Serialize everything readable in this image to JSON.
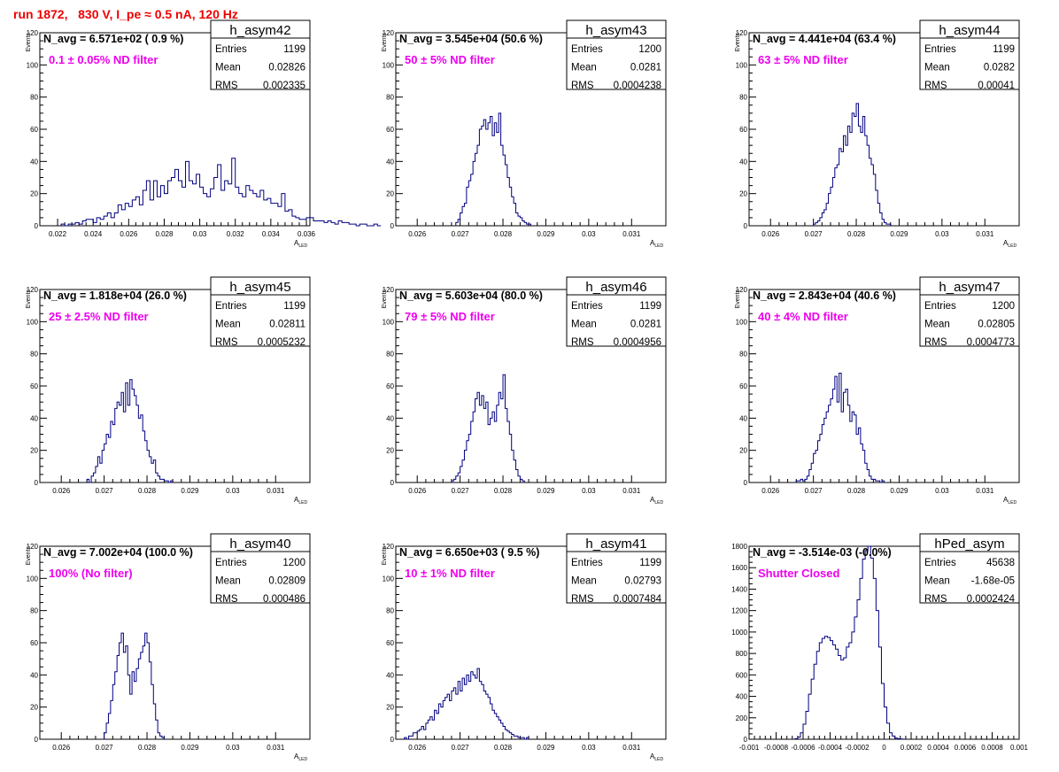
{
  "page": {
    "title": "run 1872,   830 V, I_pe ≈ 0.5 nA, 120 Hz"
  },
  "colors": {
    "title": "#ee0000",
    "annotation": "#ee00ee",
    "histogram": "#000080",
    "axis": "#000000"
  },
  "chart_data": [
    {
      "type": "histogram",
      "name": "h_asym42",
      "stats": {
        "entries_label": "Entries",
        "entries": "1199",
        "mean_label": "Mean",
        "mean": "0.02826",
        "rms_label": "RMS",
        "rms": "0.002335"
      },
      "navg": "N_avg = 6.571e+02 ( 0.9 %)",
      "annotation": "0.1 ± 0.05% ND filter",
      "xlabel": "A",
      "xlabel_sub": "LED",
      "ylabel": "Events",
      "xlim": [
        0.021,
        0.0362
      ],
      "ylim": [
        0,
        120
      ],
      "xticks": [
        "0.022",
        "0.024",
        "0.026",
        "0.028",
        "0.03",
        "0.032",
        "0.034",
        "0.036"
      ],
      "xtick_values": [
        0.022,
        0.024,
        0.026,
        0.028,
        0.03,
        0.032,
        0.034,
        0.036
      ],
      "yticks": [
        "0",
        "20",
        "40",
        "60",
        "80",
        "100",
        "120"
      ],
      "ytick_values": [
        0,
        20,
        40,
        60,
        80,
        100,
        120
      ],
      "bin_start": 0.0222,
      "bin_width": 0.0002,
      "values": [
        1,
        0,
        1,
        1,
        2,
        1,
        3,
        4,
        4,
        2,
        5,
        4,
        6,
        8,
        5,
        8,
        13,
        10,
        14,
        12,
        16,
        18,
        13,
        22,
        28,
        16,
        28,
        18,
        25,
        20,
        28,
        30,
        35,
        28,
        24,
        40,
        28,
        26,
        32,
        24,
        20,
        18,
        23,
        30,
        38,
        22,
        28,
        26,
        42,
        24,
        20,
        18,
        25,
        22,
        20,
        18,
        22,
        16,
        17,
        14,
        14,
        12,
        20,
        9,
        10,
        6,
        5,
        4,
        4,
        5,
        5,
        3,
        3,
        3,
        2,
        3,
        2,
        1,
        3,
        2,
        2,
        1,
        1,
        0,
        1,
        1,
        0,
        0,
        1,
        0
      ]
    },
    {
      "type": "histogram",
      "name": "h_asym43",
      "stats": {
        "entries_label": "Entries",
        "entries": "1200",
        "mean_label": "Mean",
        "mean": "0.0281",
        "rms_label": "RMS",
        "rms": "0.0004238"
      },
      "navg": "N_avg = 3.545e+04 (50.6 %)",
      "annotation": "50 ± 5% ND filter",
      "xlabel": "A",
      "xlabel_sub": "LED",
      "ylabel": "Events",
      "xlim": [
        0.0255,
        0.0318
      ],
      "ylim": [
        0,
        120
      ],
      "xticks": [
        "0.026",
        "0.027",
        "0.028",
        "0.029",
        "0.03",
        "0.031"
      ],
      "xtick_values": [
        0.026,
        0.027,
        0.028,
        0.029,
        0.03,
        0.031
      ],
      "yticks": [
        "0",
        "20",
        "40",
        "60",
        "80",
        "100",
        "120"
      ],
      "ytick_values": [
        0,
        20,
        40,
        60,
        80,
        100,
        120
      ],
      "bin_start": 0.0269,
      "bin_width": 5e-05,
      "values": [
        2,
        4,
        8,
        12,
        14,
        24,
        28,
        32,
        40,
        45,
        50,
        60,
        62,
        66,
        60,
        64,
        68,
        56,
        64,
        58,
        70,
        50,
        44,
        38,
        30,
        24,
        18,
        14,
        8,
        6,
        5,
        3,
        2,
        1,
        1
      ]
    },
    {
      "type": "histogram",
      "name": "h_asym44",
      "stats": {
        "entries_label": "Entries",
        "entries": "1199",
        "mean_label": "Mean",
        "mean": "0.0282",
        "rms_label": "RMS",
        "rms": "0.00041"
      },
      "navg": "N_avg = 4.441e+04 (63.4 %)",
      "annotation": "63 ± 5% ND filter",
      "xlabel": "A",
      "xlabel_sub": "LED",
      "ylabel": "Events",
      "xlim": [
        0.0255,
        0.0318
      ],
      "ylim": [
        0,
        120
      ],
      "xticks": [
        "0.026",
        "0.027",
        "0.028",
        "0.029",
        "0.03",
        "0.031"
      ],
      "xtick_values": [
        0.026,
        0.027,
        0.028,
        0.029,
        0.03,
        0.031
      ],
      "yticks": [
        "0",
        "20",
        "40",
        "60",
        "80",
        "100",
        "120"
      ],
      "ytick_values": [
        0,
        20,
        40,
        60,
        80,
        100,
        120
      ],
      "bin_start": 0.027,
      "bin_width": 5e-05,
      "values": [
        1,
        2,
        3,
        5,
        8,
        10,
        14,
        20,
        24,
        30,
        36,
        38,
        48,
        46,
        56,
        50,
        62,
        58,
        70,
        68,
        76,
        62,
        58,
        68,
        56,
        50,
        42,
        38,
        32,
        22,
        14,
        8,
        4,
        2,
        1,
        1
      ]
    },
    {
      "type": "histogram",
      "name": "h_asym45",
      "stats": {
        "entries_label": "Entries",
        "entries": "1199",
        "mean_label": "Mean",
        "mean": "0.02811",
        "rms_label": "RMS",
        "rms": "0.0005232"
      },
      "navg": "N_avg = 1.818e+04 (26.0 %)",
      "annotation": "25 ± 2.5% ND filter",
      "xlabel": "A",
      "xlabel_sub": "LED",
      "ylabel": "Events",
      "xlim": [
        0.0255,
        0.0318
      ],
      "ylim": [
        0,
        120
      ],
      "xticks": [
        "0.026",
        "0.027",
        "0.028",
        "0.029",
        "0.03",
        "0.031"
      ],
      "xtick_values": [
        0.026,
        0.027,
        0.028,
        0.029,
        0.03,
        0.031
      ],
      "yticks": [
        "0",
        "20",
        "40",
        "60",
        "80",
        "100",
        "120"
      ],
      "ytick_values": [
        0,
        20,
        40,
        60,
        80,
        100,
        120
      ],
      "bin_start": 0.0266,
      "bin_width": 5e-05,
      "values": [
        2,
        0,
        4,
        6,
        10,
        16,
        12,
        20,
        24,
        30,
        28,
        38,
        36,
        46,
        50,
        48,
        56,
        44,
        62,
        48,
        64,
        58,
        54,
        48,
        40,
        42,
        32,
        26,
        20,
        16,
        12,
        14,
        6,
        4,
        2,
        2,
        1,
        1,
        0,
        1
      ]
    },
    {
      "type": "histogram",
      "name": "h_asym46",
      "stats": {
        "entries_label": "Entries",
        "entries": "1199",
        "mean_label": "Mean",
        "mean": "0.0281",
        "rms_label": "RMS",
        "rms": "0.0004956"
      },
      "navg": "N_avg = 5.603e+04 (80.0 %)",
      "annotation": "79 ± 5% ND filter",
      "xlabel": "A",
      "xlabel_sub": "LED",
      "ylabel": "Events",
      "xlim": [
        0.0255,
        0.0318
      ],
      "ylim": [
        0,
        120
      ],
      "xticks": [
        "0.026",
        "0.027",
        "0.028",
        "0.029",
        "0.03",
        "0.031"
      ],
      "xtick_values": [
        0.026,
        0.027,
        0.028,
        0.029,
        0.03,
        0.031
      ],
      "yticks": [
        "0",
        "20",
        "40",
        "60",
        "80",
        "100",
        "120"
      ],
      "ytick_values": [
        0,
        20,
        40,
        60,
        80,
        100,
        120
      ],
      "bin_start": 0.0268,
      "bin_width": 5e-05,
      "values": [
        1,
        2,
        4,
        6,
        10,
        14,
        20,
        26,
        30,
        38,
        44,
        52,
        56,
        48,
        54,
        46,
        50,
        36,
        40,
        44,
        38,
        48,
        56,
        52,
        67,
        46,
        38,
        30,
        20,
        14,
        8,
        4,
        2,
        1
      ]
    },
    {
      "type": "histogram",
      "name": "h_asym47",
      "stats": {
        "entries_label": "Entries",
        "entries": "1200",
        "mean_label": "Mean",
        "mean": "0.02805",
        "rms_label": "RMS",
        "rms": "0.0004773"
      },
      "navg": "N_avg = 2.843e+04 (40.6 %)",
      "annotation": "40 ± 4% ND filter",
      "xlabel": "A",
      "xlabel_sub": "LED",
      "ylabel": "Events",
      "xlim": [
        0.0255,
        0.0318
      ],
      "ylim": [
        0,
        120
      ],
      "xticks": [
        "0.026",
        "0.027",
        "0.028",
        "0.029",
        "0.03",
        "0.031"
      ],
      "xtick_values": [
        0.026,
        0.027,
        0.028,
        0.029,
        0.03,
        0.031
      ],
      "yticks": [
        "0",
        "20",
        "40",
        "60",
        "80",
        "100",
        "120"
      ],
      "ytick_values": [
        0,
        20,
        40,
        60,
        80,
        100,
        120
      ],
      "bin_start": 0.0266,
      "bin_width": 5e-05,
      "values": [
        1,
        1,
        2,
        1,
        2,
        4,
        8,
        12,
        18,
        20,
        26,
        30,
        36,
        40,
        44,
        48,
        52,
        58,
        66,
        50,
        68,
        44,
        56,
        58,
        48,
        38,
        44,
        42,
        30,
        34,
        24,
        20,
        12,
        8,
        4,
        2,
        2,
        1,
        1,
        0,
        1
      ]
    },
    {
      "type": "histogram",
      "name": "h_asym40",
      "stats": {
        "entries_label": "Entries",
        "entries": "1200",
        "mean_label": "Mean",
        "mean": "0.02809",
        "rms_label": "RMS",
        "rms": "0.000486"
      },
      "navg": "N_avg = 7.002e+04 (100.0 %)",
      "annotation": "100% (No filter)",
      "xlabel": "A",
      "xlabel_sub": "LED",
      "ylabel": "Events",
      "xlim": [
        0.0255,
        0.0318
      ],
      "ylim": [
        0,
        120
      ],
      "xticks": [
        "0.026",
        "0.027",
        "0.028",
        "0.029",
        "0.03",
        "0.031"
      ],
      "xtick_values": [
        0.026,
        0.027,
        0.028,
        0.029,
        0.03,
        0.031
      ],
      "yticks": [
        "0",
        "20",
        "40",
        "60",
        "80",
        "100",
        "120"
      ],
      "ytick_values": [
        0,
        20,
        40,
        60,
        80,
        100,
        120
      ],
      "bin_start": 0.027,
      "bin_width": 5e-05,
      "values": [
        4,
        10,
        16,
        24,
        34,
        42,
        52,
        60,
        66,
        54,
        58,
        40,
        28,
        42,
        36,
        44,
        50,
        54,
        58,
        66,
        60,
        48,
        34,
        22,
        12,
        4,
        2,
        1
      ]
    },
    {
      "type": "histogram",
      "name": "h_asym41",
      "stats": {
        "entries_label": "Entries",
        "entries": "1199",
        "mean_label": "Mean",
        "mean": "0.02793",
        "rms_label": "RMS",
        "rms": "0.0007484"
      },
      "navg": "N_avg = 6.650e+03 ( 9.5 %)",
      "annotation": "10 ± 1% ND filter",
      "xlabel": "A",
      "xlabel_sub": "LED",
      "ylabel": "Events",
      "xlim": [
        0.0255,
        0.0318
      ],
      "ylim": [
        0,
        120
      ],
      "xticks": [
        "0.026",
        "0.027",
        "0.028",
        "0.029",
        "0.03",
        "0.031"
      ],
      "xtick_values": [
        0.026,
        0.027,
        0.028,
        0.029,
        0.03,
        0.031
      ],
      "yticks": [
        "0",
        "20",
        "40",
        "60",
        "80",
        "100",
        "120"
      ],
      "ytick_values": [
        0,
        20,
        40,
        60,
        80,
        100,
        120
      ],
      "bin_start": 0.0257,
      "bin_width": 5e-05,
      "values": [
        1,
        0,
        2,
        2,
        4,
        4,
        5,
        6,
        8,
        6,
        10,
        12,
        14,
        12,
        18,
        16,
        22,
        20,
        24,
        26,
        28,
        24,
        30,
        32,
        28,
        36,
        30,
        38,
        34,
        40,
        36,
        42,
        40,
        38,
        44,
        36,
        34,
        30,
        28,
        26,
        22,
        18,
        16,
        14,
        12,
        10,
        8,
        6,
        5,
        4,
        3,
        2,
        2,
        1,
        1,
        1,
        0,
        1
      ]
    },
    {
      "type": "histogram",
      "name": "hPed_asym",
      "stats": {
        "entries_label": "Entries",
        "entries": "45638",
        "mean_label": "Mean",
        "mean": "-1.68e-05",
        "rms_label": "RMS",
        "rms": "0.0002424"
      },
      "navg": "N_avg = -3.514e-03 (-0.0%)",
      "annotation": "Shutter Closed",
      "xlabel": "",
      "xlabel_sub": "",
      "ylabel": "",
      "xlim": [
        -0.001,
        0.001
      ],
      "ylim": [
        0,
        1800
      ],
      "xticks": [
        "-0.001",
        "-0.0008",
        "-0.0006",
        "-0.0004",
        "-0.0002",
        "0",
        "0.0002",
        "0.0004",
        "0.0006",
        "0.0008",
        "0.001"
      ],
      "xtick_values": [
        -0.001,
        -0.0008,
        -0.0006,
        -0.0004,
        -0.0002,
        0,
        0.0002,
        0.0004,
        0.0006,
        0.0008,
        0.001
      ],
      "yticks": [
        "0",
        "200",
        "400",
        "600",
        "800",
        "1000",
        "1200",
        "1400",
        "1600",
        "1800"
      ],
      "ytick_values": [
        0,
        200,
        400,
        600,
        800,
        1000,
        1200,
        1400,
        1600,
        1800
      ],
      "bin_start": -0.00066,
      "bin_width": 2e-05,
      "values": [
        5,
        20,
        60,
        140,
        260,
        420,
        560,
        700,
        820,
        900,
        940,
        960,
        950,
        920,
        880,
        840,
        780,
        740,
        760,
        860,
        900,
        1000,
        1140,
        1300,
        1500,
        1680,
        1760,
        1800,
        1690,
        1500,
        1200,
        860,
        520,
        300,
        150,
        60,
        30,
        10,
        5,
        2
      ]
    }
  ]
}
